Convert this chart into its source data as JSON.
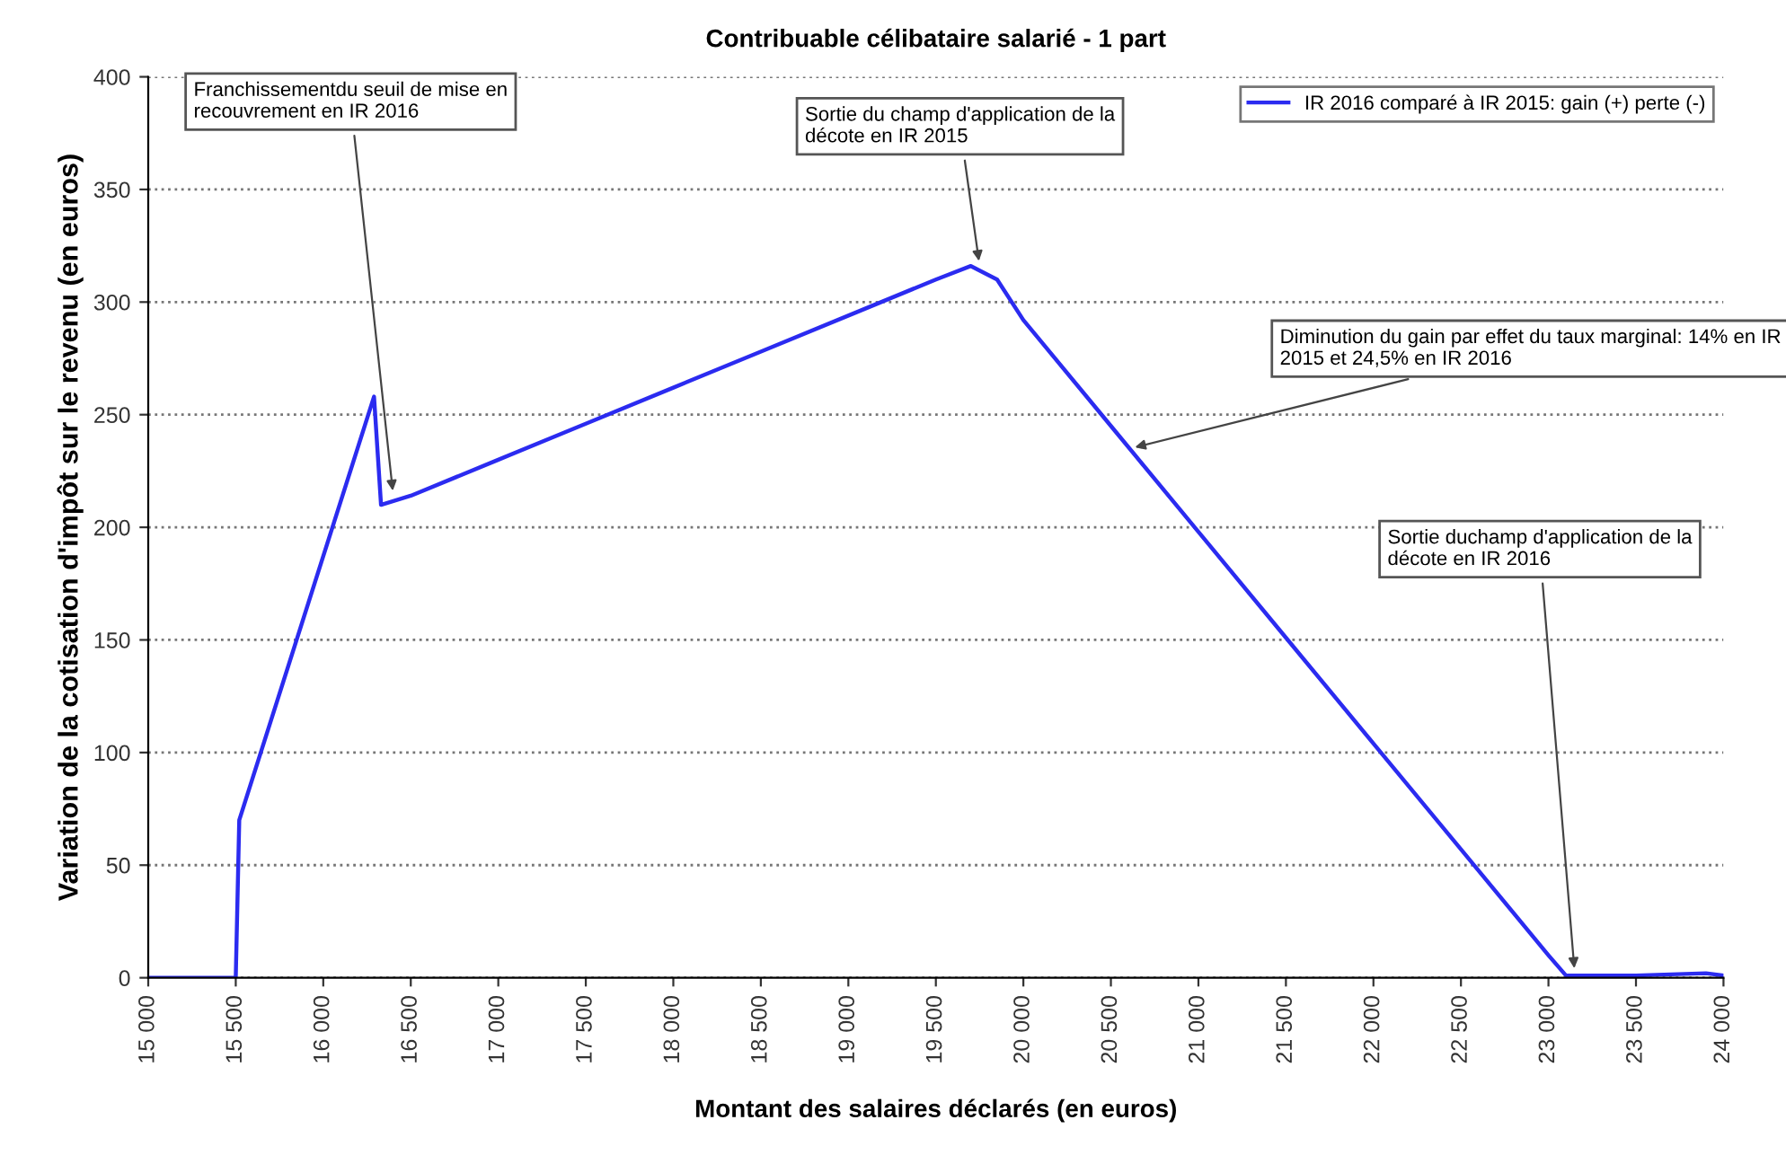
{
  "chart_data": {
    "type": "line",
    "title": "Contribuable célibataire salarié - 1 part",
    "xlabel": "Montant des salaires déclarés (en euros)",
    "ylabel": "Variation de la cotisation d'impôt sur le revenu (en euros)",
    "series": [
      {
        "name": "IR 2016 comparé à IR 2015: gain (+) perte (-)",
        "color": "#2b2bf0",
        "x": [
          15000,
          15500,
          15520,
          16290,
          16330,
          16500,
          17000,
          17500,
          18000,
          18500,
          19000,
          19500,
          19700,
          19850,
          20000,
          20500,
          21000,
          21500,
          22000,
          22500,
          23000,
          23100,
          23500,
          23900,
          24000
        ],
        "values": [
          0,
          0,
          70,
          258,
          210,
          214,
          230,
          246,
          262,
          278,
          294,
          310,
          316,
          310,
          292,
          245,
          198,
          151,
          104,
          57,
          10,
          1,
          1,
          2,
          1
        ]
      }
    ],
    "annotations": [
      {
        "text": "Franchissementdu seuil de mise en\nrecouvrement en IR 2016",
        "x": 16400,
        "y": 214
      },
      {
        "text": "Sortie du champ d'application de la\ndécote en IR 2015",
        "x": 19750,
        "y": 316
      },
      {
        "text": "Diminution du gain par effet du taux marginal: 14% en IR\n2015 et 24,5% en IR 2016",
        "x": 20610,
        "y": 235
      },
      {
        "text": "Sortie duchamp d'application de la\ndécote en IR 2016",
        "x": 23150,
        "y": 2
      }
    ],
    "xlim": [
      15000,
      24000
    ],
    "xticks": [
      {
        "value": 15000,
        "label": "15 000"
      },
      {
        "value": 15500,
        "label": "15 500"
      },
      {
        "value": 16000,
        "label": "16 000"
      },
      {
        "value": 16500,
        "label": "16 500"
      },
      {
        "value": 17000,
        "label": "17 000"
      },
      {
        "value": 17500,
        "label": "17 500"
      },
      {
        "value": 18000,
        "label": "18 000"
      },
      {
        "value": 18500,
        "label": "18 500"
      },
      {
        "value": 19000,
        "label": "19 000"
      },
      {
        "value": 19500,
        "label": "19 500"
      },
      {
        "value": 20000,
        "label": "20 000"
      },
      {
        "value": 20500,
        "label": "20 500"
      },
      {
        "value": 21000,
        "label": "21 000"
      },
      {
        "value": 21500,
        "label": "21 500"
      },
      {
        "value": 22000,
        "label": "22 000"
      },
      {
        "value": 22500,
        "label": "22 500"
      },
      {
        "value": 23000,
        "label": "23 000"
      },
      {
        "value": 23500,
        "label": "23 500"
      },
      {
        "value": 24000,
        "label": "24 000"
      }
    ],
    "ylim": [
      0,
      400
    ],
    "yticks": [
      0,
      50,
      100,
      150,
      200,
      250,
      300,
      350,
      400
    ],
    "grid": "y",
    "legend": "top right",
    "marker": "none",
    "line_style": "solid"
  }
}
